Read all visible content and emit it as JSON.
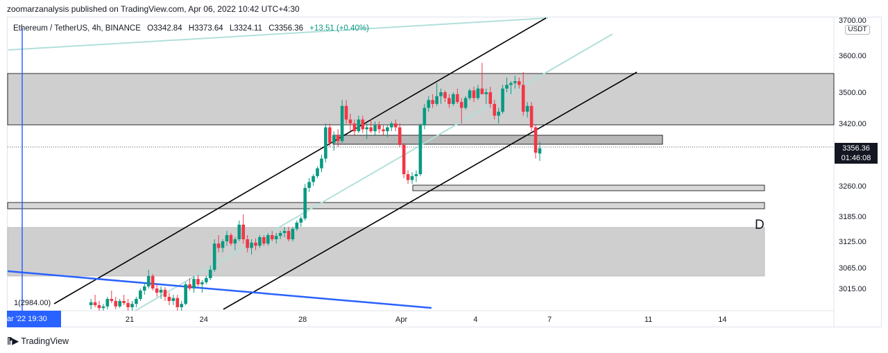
{
  "header": {
    "publisher_line": "zoomarzanalysis published on TradingView.com, Apr 06, 2022 10:42 UTC+4:30"
  },
  "legend": {
    "symbol": "Ethereum / TetherUS, 4h, BINANCE",
    "open": "O3342.84",
    "high": "H3373.64",
    "low": "L3324.11",
    "close": "C3356.36",
    "change": "+13.51 (+0.40%)"
  },
  "price_axis": {
    "unit": "USDT",
    "current_price": "3356.36",
    "countdown": "01:46:08"
  },
  "time_axis": {
    "crosshair_label": "ar '22   19:30"
  },
  "annotations": {
    "wave_label": "D",
    "point_label": "1(2984.00)"
  },
  "footer": {
    "brand": "TradingView"
  },
  "colors": {
    "up": "#089981",
    "down": "#f23645",
    "zone": "#cfcfcf",
    "zone_dark": "#b8b8b8",
    "channel": "#000000",
    "mid_channel": "#b2dfdb",
    "blue_line": "#2962ff"
  },
  "chart_data": {
    "type": "candlestick",
    "symbol": "Ethereum / TetherUS",
    "interval": "4h",
    "exchange": "BINANCE",
    "y_ticks": [
      3015,
      3065,
      3125,
      3185,
      3260,
      3420,
      3500,
      3600,
      3700
    ],
    "y_tick_labels": [
      "3015.00",
      "3065.00",
      "3125.00",
      "3185.00",
      "3260.00",
      "3420.00",
      "3500.00",
      "3600.00",
      "3700.00"
    ],
    "x_ticks": [
      {
        "label": "21",
        "day": 21
      },
      {
        "label": "24",
        "day": 24
      },
      {
        "label": "28",
        "day": 28
      },
      {
        "label": "Apr",
        "day": 32
      },
      {
        "label": "4",
        "day": 35
      },
      {
        "label": "7",
        "day": 38
      },
      {
        "label": "11",
        "day": 42
      },
      {
        "label": "14",
        "day": 45
      }
    ],
    "candle_spacing_days": 0.1667,
    "candles": [
      [
        2975,
        2990,
        2965,
        2982
      ],
      [
        2982,
        3000,
        2970,
        2975
      ],
      [
        2975,
        2985,
        2960,
        2968
      ],
      [
        2968,
        2978,
        2955,
        2972
      ],
      [
        2972,
        2995,
        2965,
        2990
      ],
      [
        2990,
        3010,
        2980,
        2985
      ],
      [
        2985,
        2995,
        2965,
        2972
      ],
      [
        2972,
        2990,
        2968,
        2985
      ],
      [
        2985,
        3000,
        2975,
        2980
      ],
      [
        2980,
        2990,
        2960,
        2970
      ],
      [
        2970,
        2985,
        2960,
        2978
      ],
      [
        2978,
        2995,
        2970,
        2990
      ],
      [
        2990,
        3015,
        2985,
        3010
      ],
      [
        3010,
        3030,
        3000,
        3020
      ],
      [
        3020,
        3060,
        3015,
        3045
      ],
      [
        3045,
        3050,
        3010,
        3015
      ],
      [
        3015,
        3025,
        2995,
        3005
      ],
      [
        3005,
        3020,
        2990,
        3012
      ],
      [
        3012,
        3018,
        2985,
        2995
      ],
      [
        2995,
        3005,
        2975,
        2985
      ],
      [
        2985,
        3000,
        2975,
        2992
      ],
      [
        2992,
        3000,
        2960,
        2970
      ],
      [
        2970,
        2985,
        2955,
        2978
      ],
      [
        2978,
        3030,
        2975,
        3025
      ],
      [
        3025,
        3040,
        3010,
        3015
      ],
      [
        3015,
        3045,
        3005,
        3038
      ],
      [
        3038,
        3048,
        3020,
        3025
      ],
      [
        3025,
        3035,
        3005,
        3030
      ],
      [
        3030,
        3045,
        3025,
        3040
      ],
      [
        3040,
        3070,
        3035,
        3060
      ],
      [
        3060,
        3130,
        3055,
        3120
      ],
      [
        3120,
        3140,
        3100,
        3110
      ],
      [
        3110,
        3130,
        3100,
        3125
      ],
      [
        3125,
        3150,
        3115,
        3140
      ],
      [
        3140,
        3145,
        3115,
        3120
      ],
      [
        3120,
        3135,
        3105,
        3130
      ],
      [
        3130,
        3175,
        3125,
        3165
      ],
      [
        3165,
        3190,
        3120,
        3130
      ],
      [
        3130,
        3140,
        3100,
        3110
      ],
      [
        3110,
        3130,
        3095,
        3122
      ],
      [
        3122,
        3132,
        3105,
        3115
      ],
      [
        3115,
        3140,
        3110,
        3135
      ],
      [
        3135,
        3140,
        3115,
        3120
      ],
      [
        3120,
        3145,
        3115,
        3140
      ],
      [
        3140,
        3150,
        3125,
        3130
      ],
      [
        3130,
        3145,
        3120,
        3138
      ],
      [
        3138,
        3150,
        3130,
        3145
      ],
      [
        3145,
        3160,
        3135,
        3150
      ],
      [
        3150,
        3160,
        3125,
        3130
      ],
      [
        3130,
        3160,
        3125,
        3155
      ],
      [
        3155,
        3175,
        3150,
        3170
      ],
      [
        3170,
        3185,
        3160,
        3180
      ],
      [
        3180,
        3265,
        3175,
        3255
      ],
      [
        3255,
        3280,
        3245,
        3270
      ],
      [
        3270,
        3290,
        3260,
        3285
      ],
      [
        3285,
        3310,
        3280,
        3305
      ],
      [
        3305,
        3340,
        3295,
        3330
      ],
      [
        3330,
        3420,
        3320,
        3410
      ],
      [
        3410,
        3420,
        3360,
        3370
      ],
      [
        3370,
        3400,
        3350,
        3390
      ],
      [
        3390,
        3405,
        3360,
        3375
      ],
      [
        3375,
        3480,
        3370,
        3465
      ],
      [
        3465,
        3480,
        3420,
        3430
      ],
      [
        3430,
        3445,
        3400,
        3420
      ],
      [
        3420,
        3430,
        3390,
        3400
      ],
      [
        3400,
        3440,
        3395,
        3430
      ],
      [
        3430,
        3440,
        3395,
        3405
      ],
      [
        3405,
        3420,
        3380,
        3410
      ],
      [
        3410,
        3430,
        3395,
        3400
      ],
      [
        3400,
        3425,
        3390,
        3415
      ],
      [
        3415,
        3425,
        3395,
        3405
      ],
      [
        3405,
        3415,
        3390,
        3400
      ],
      [
        3400,
        3415,
        3385,
        3410
      ],
      [
        3410,
        3425,
        3400,
        3420
      ],
      [
        3420,
        3430,
        3400,
        3410
      ],
      [
        3410,
        3420,
        3360,
        3365
      ],
      [
        3365,
        3370,
        3280,
        3290
      ],
      [
        3290,
        3300,
        3265,
        3275
      ],
      [
        3275,
        3295,
        3265,
        3285
      ],
      [
        3285,
        3300,
        3270,
        3290
      ],
      [
        3290,
        3420,
        3285,
        3415
      ],
      [
        3415,
        3470,
        3405,
        3460
      ],
      [
        3460,
        3490,
        3450,
        3480
      ],
      [
        3480,
        3495,
        3460,
        3470
      ],
      [
        3470,
        3525,
        3465,
        3490
      ],
      [
        3490,
        3510,
        3470,
        3500
      ],
      [
        3500,
        3505,
        3475,
        3485
      ],
      [
        3485,
        3495,
        3460,
        3470
      ],
      [
        3470,
        3500,
        3465,
        3495
      ],
      [
        3495,
        3510,
        3470,
        3475
      ],
      [
        3475,
        3485,
        3420,
        3460
      ],
      [
        3460,
        3490,
        3455,
        3485
      ],
      [
        3485,
        3510,
        3480,
        3505
      ],
      [
        3505,
        3515,
        3475,
        3485
      ],
      [
        3485,
        3520,
        3480,
        3510
      ],
      [
        3510,
        3580,
        3500,
        3495
      ],
      [
        3495,
        3510,
        3470,
        3500
      ],
      [
        3500,
        3515,
        3460,
        3470
      ],
      [
        3470,
        3480,
        3430,
        3440
      ],
      [
        3440,
        3460,
        3420,
        3450
      ],
      [
        3450,
        3520,
        3445,
        3510
      ],
      [
        3510,
        3540,
        3500,
        3520
      ],
      [
        3520,
        3530,
        3495,
        3525
      ],
      [
        3525,
        3545,
        3510,
        3530
      ],
      [
        3530,
        3540,
        3510,
        3520
      ],
      [
        3520,
        3555,
        3440,
        3450
      ],
      [
        3450,
        3475,
        3435,
        3465
      ],
      [
        3465,
        3475,
        3400,
        3410
      ],
      [
        3410,
        3415,
        3330,
        3345
      ],
      [
        3342.84,
        3373.64,
        3324.11,
        3356.36
      ]
    ]
  }
}
